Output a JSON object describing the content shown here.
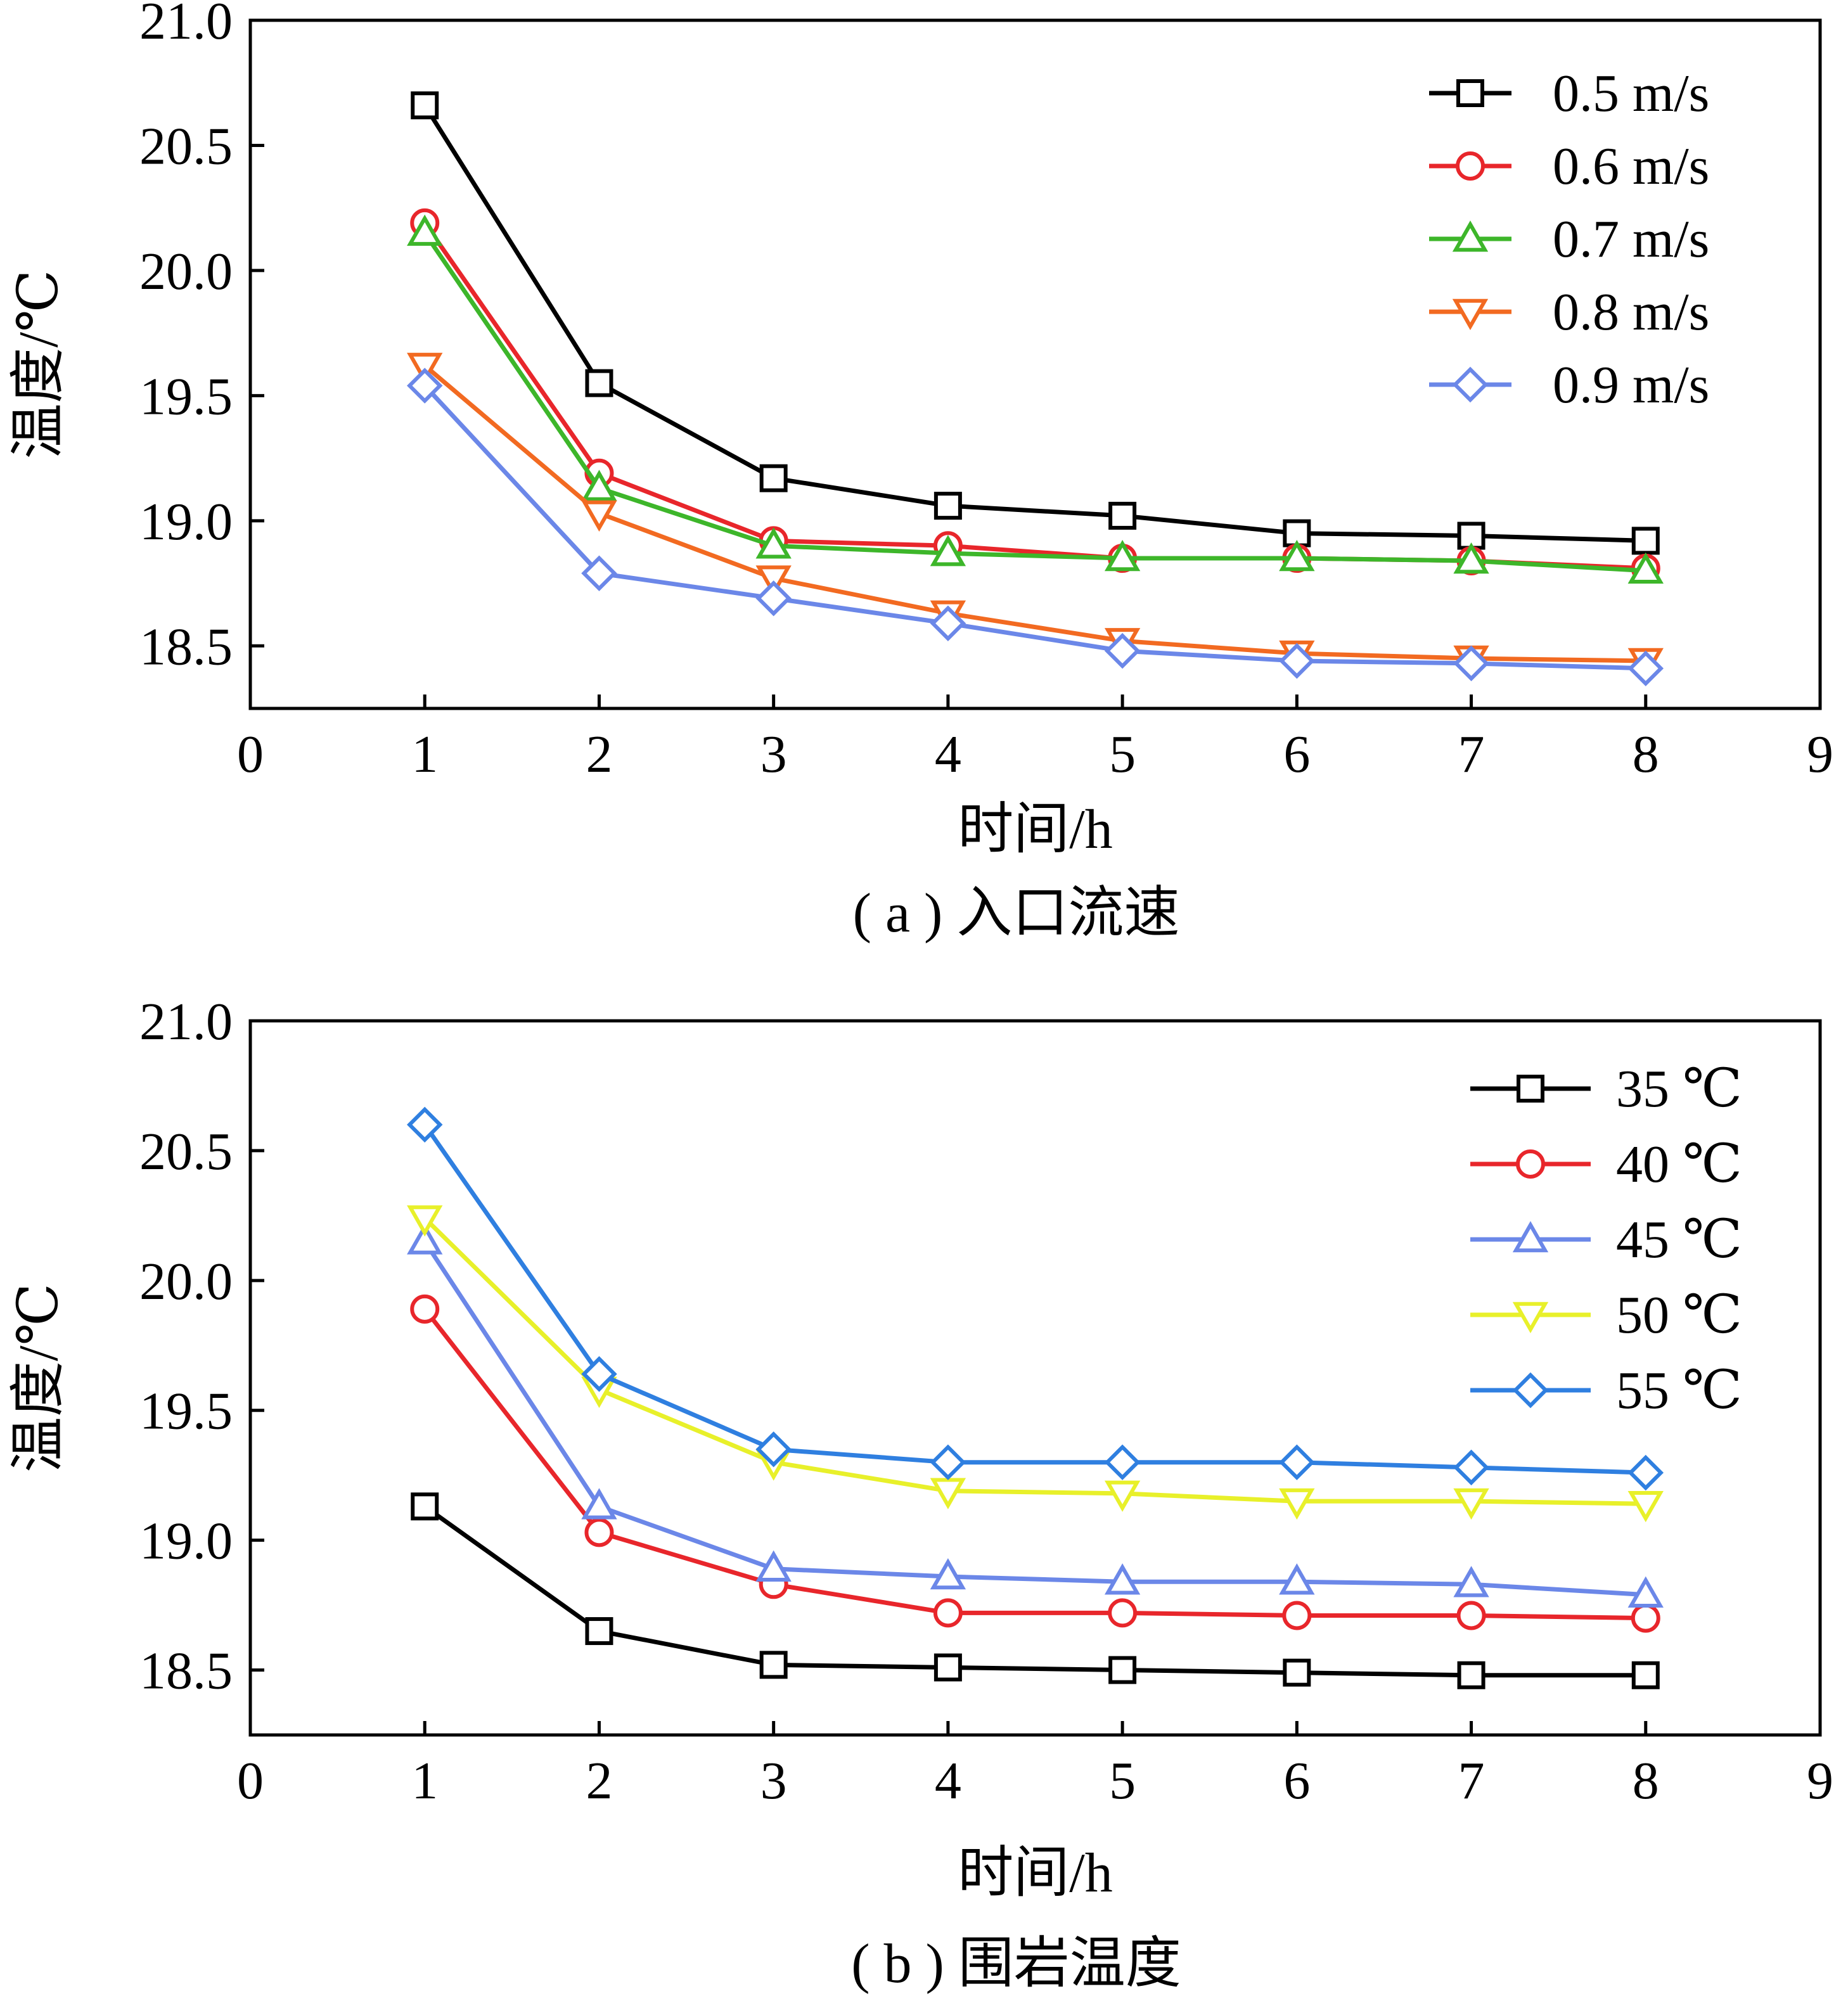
{
  "chart_data": [
    {
      "type": "line",
      "caption": "( a ) 入口流速",
      "xlabel": "时间/h",
      "ylabel": "温度/℃",
      "xlim": [
        0,
        9
      ],
      "ylim": [
        18.25,
        21.0
      ],
      "xticks": [
        "0",
        "1",
        "2",
        "3",
        "4",
        "5",
        "6",
        "7",
        "8",
        "9"
      ],
      "yticks": [
        "18.5",
        "19.0",
        "19.5",
        "20.0",
        "20.5",
        "21.0"
      ],
      "x": [
        1,
        2,
        3,
        4,
        5,
        6,
        7,
        8
      ],
      "legend_position": "top-right",
      "series": [
        {
          "name": "0.5 m/s",
          "color": "#000000",
          "marker": "square",
          "values": [
            20.66,
            19.55,
            19.17,
            19.06,
            19.02,
            18.95,
            18.94,
            18.92
          ]
        },
        {
          "name": "0.6 m/s",
          "color": "#e8262b",
          "marker": "circle",
          "values": [
            20.19,
            19.19,
            18.92,
            18.9,
            18.85,
            18.85,
            18.84,
            18.81
          ]
        },
        {
          "name": "0.7 m/s",
          "color": "#3db62a",
          "marker": "triangle-up",
          "values": [
            20.15,
            19.13,
            18.9,
            18.87,
            18.85,
            18.85,
            18.84,
            18.8
          ]
        },
        {
          "name": "0.8 m/s",
          "color": "#f26a21",
          "marker": "triangle-down",
          "values": [
            19.62,
            19.03,
            18.77,
            18.63,
            18.52,
            18.47,
            18.45,
            18.44
          ]
        },
        {
          "name": "0.9 m/s",
          "color": "#6b87e8",
          "marker": "diamond",
          "values": [
            19.54,
            18.79,
            18.69,
            18.59,
            18.48,
            18.44,
            18.43,
            18.41
          ]
        }
      ]
    },
    {
      "type": "line",
      "caption": "( b ) 围岩温度",
      "xlabel": "时间/h",
      "ylabel": "温度/℃",
      "xlim": [
        0,
        9
      ],
      "ylim": [
        18.25,
        21.0
      ],
      "xticks": [
        "0",
        "1",
        "2",
        "3",
        "4",
        "5",
        "6",
        "7",
        "8",
        "9"
      ],
      "yticks": [
        "18.5",
        "19.0",
        "19.5",
        "20.0",
        "20.5",
        "21.0"
      ],
      "x": [
        1,
        2,
        3,
        4,
        5,
        6,
        7,
        8
      ],
      "legend_position": "top-right",
      "series": [
        {
          "name": "35 ℃",
          "color": "#000000",
          "marker": "square",
          "values": [
            19.13,
            18.65,
            18.52,
            18.51,
            18.5,
            18.49,
            18.48,
            18.48
          ]
        },
        {
          "name": "40 ℃",
          "color": "#e8262b",
          "marker": "circle",
          "values": [
            19.89,
            19.03,
            18.83,
            18.72,
            18.72,
            18.71,
            18.71,
            18.7
          ]
        },
        {
          "name": "45 ℃",
          "color": "#6b87e8",
          "marker": "triangle-up",
          "values": [
            20.15,
            19.13,
            18.89,
            18.86,
            18.84,
            18.84,
            18.83,
            18.79
          ]
        },
        {
          "name": "50 ℃",
          "color": "#e8f02a",
          "marker": "triangle-down",
          "values": [
            20.24,
            19.58,
            19.3,
            19.19,
            19.18,
            19.15,
            19.15,
            19.14
          ]
        },
        {
          "name": "55 ℃",
          "color": "#2f7fe0",
          "marker": "diamond",
          "values": [
            20.6,
            19.64,
            19.35,
            19.3,
            19.3,
            19.3,
            19.28,
            19.26
          ]
        }
      ]
    }
  ]
}
